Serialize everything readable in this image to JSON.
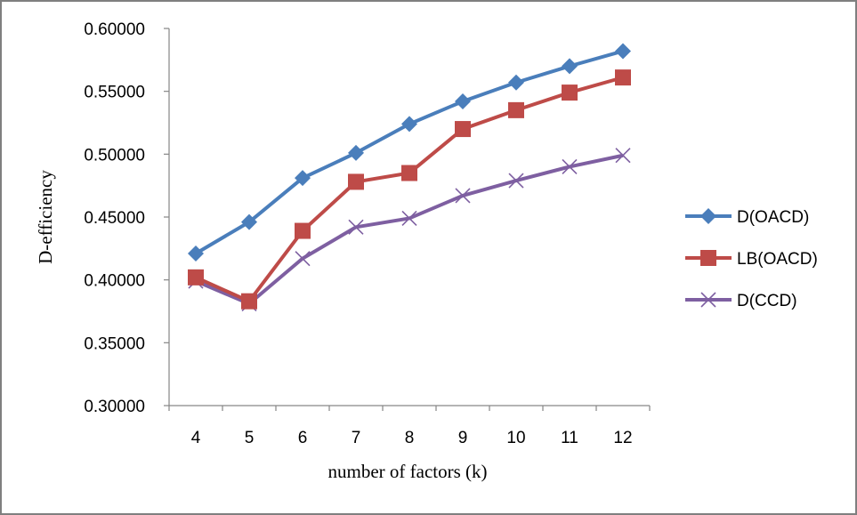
{
  "chart_data": {
    "type": "line",
    "x": [
      4,
      5,
      6,
      7,
      8,
      9,
      10,
      11,
      12
    ],
    "xlabel": "number of factors  (k)",
    "ylabel": "D-efficiency",
    "ylim": [
      0.3,
      0.6
    ],
    "yticks": [
      "0.30000",
      "0.35000",
      "0.40000",
      "0.45000",
      "0.50000",
      "0.55000",
      "0.60000"
    ],
    "grid": false,
    "legend_position": "right",
    "series": [
      {
        "name": "D(OACD)",
        "color": "#4a7ebb",
        "marker": "diamond",
        "values": [
          0.421,
          0.446,
          0.481,
          0.501,
          0.524,
          0.542,
          0.557,
          0.57,
          0.582
        ]
      },
      {
        "name": "LB(OACD)",
        "color": "#be4b48",
        "marker": "square",
        "values": [
          0.402,
          0.383,
          0.439,
          0.478,
          0.485,
          0.52,
          0.535,
          0.549,
          0.561
        ]
      },
      {
        "name": "D(CCD)",
        "color": "#7e5fa1",
        "marker": "x",
        "values": [
          0.399,
          0.381,
          0.417,
          0.442,
          0.449,
          0.467,
          0.479,
          0.49,
          0.499
        ]
      }
    ]
  }
}
